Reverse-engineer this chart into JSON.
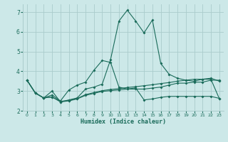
{
  "title": "",
  "xlabel": "Humidex (Indice chaleur)",
  "bg_color": "#cce8e8",
  "grid_color": "#aacccc",
  "line_color": "#1a6b5a",
  "xlim": [
    -0.5,
    23.5
  ],
  "ylim": [
    2.0,
    7.4
  ],
  "xticks": [
    0,
    1,
    2,
    3,
    4,
    5,
    6,
    7,
    8,
    9,
    10,
    11,
    12,
    13,
    14,
    15,
    16,
    17,
    18,
    19,
    20,
    21,
    22,
    23
  ],
  "yticks": [
    2,
    3,
    4,
    5,
    6,
    7
  ],
  "line1_x": [
    0,
    1,
    2,
    3,
    4,
    5,
    6,
    7,
    8,
    9,
    10,
    11,
    12,
    13,
    14,
    15,
    16,
    17,
    18,
    19,
    20,
    21,
    22,
    23
  ],
  "line1_y": [
    3.55,
    2.9,
    2.65,
    3.0,
    2.45,
    2.55,
    2.65,
    3.1,
    3.2,
    3.35,
    4.6,
    6.55,
    7.1,
    6.55,
    5.95,
    6.6,
    4.4,
    3.85,
    3.65,
    3.55,
    3.5,
    3.6,
    3.65,
    3.5
  ],
  "line2_x": [
    0,
    1,
    2,
    3,
    4,
    5,
    6,
    7,
    8,
    9,
    10,
    11,
    12,
    13,
    14,
    15,
    16,
    17,
    18,
    19,
    20,
    21,
    22,
    23
  ],
  "line2_y": [
    3.55,
    2.9,
    2.65,
    2.8,
    2.5,
    3.05,
    3.3,
    3.45,
    4.05,
    4.55,
    4.45,
    3.2,
    3.1,
    3.1,
    3.1,
    3.15,
    3.2,
    3.3,
    3.4,
    3.4,
    3.45,
    3.45,
    3.55,
    3.55
  ],
  "line3_x": [
    0,
    1,
    2,
    3,
    4,
    5,
    6,
    7,
    8,
    9,
    10,
    11,
    12,
    13,
    14,
    15,
    16,
    17,
    18,
    19,
    20,
    21,
    22,
    23
  ],
  "line3_y": [
    3.55,
    2.9,
    2.65,
    2.7,
    2.48,
    2.52,
    2.62,
    2.82,
    2.92,
    3.02,
    3.08,
    3.12,
    3.18,
    3.22,
    3.27,
    3.32,
    3.38,
    3.43,
    3.5,
    3.55,
    3.6,
    3.6,
    3.6,
    2.62
  ],
  "line4_x": [
    0,
    1,
    2,
    3,
    4,
    5,
    6,
    7,
    8,
    9,
    10,
    11,
    12,
    13,
    14,
    15,
    16,
    17,
    18,
    19,
    20,
    21,
    22,
    23
  ],
  "line4_y": [
    3.55,
    2.9,
    2.65,
    2.7,
    2.45,
    2.5,
    2.6,
    2.78,
    2.88,
    2.98,
    3.02,
    3.06,
    3.1,
    3.16,
    2.55,
    2.6,
    2.68,
    2.73,
    2.73,
    2.73,
    2.73,
    2.73,
    2.73,
    2.63
  ]
}
